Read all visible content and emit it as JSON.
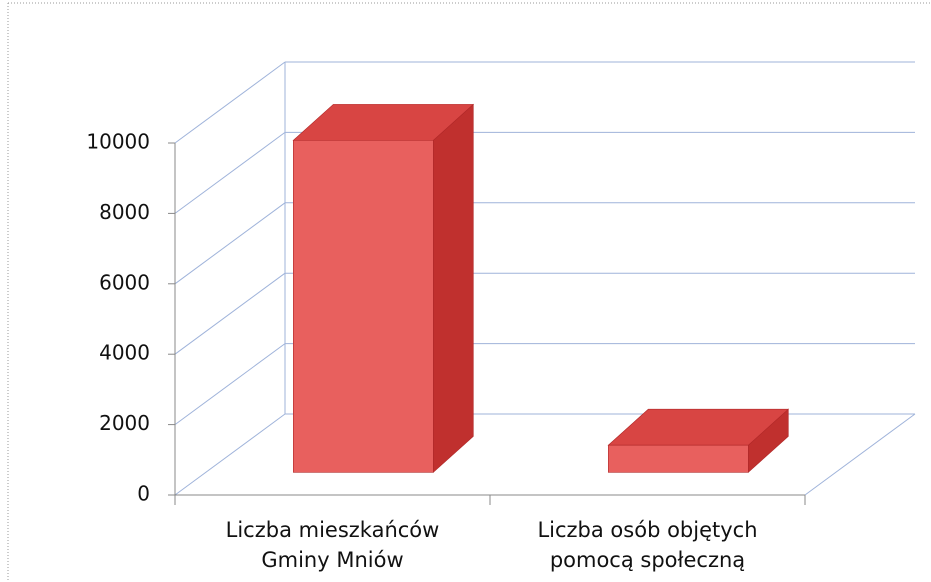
{
  "chart_data": {
    "type": "bar3d",
    "categories": [
      "Liczba mieszkańców Gminy Mniów",
      "Liczba osób objętych pomocą społeczną"
    ],
    "values": [
      9430,
      770
    ],
    "color": "#e8605e",
    "ylim": [
      0,
      10000
    ],
    "yticks": [
      0,
      2000,
      4000,
      6000,
      8000,
      10000
    ],
    "grid": true
  }
}
